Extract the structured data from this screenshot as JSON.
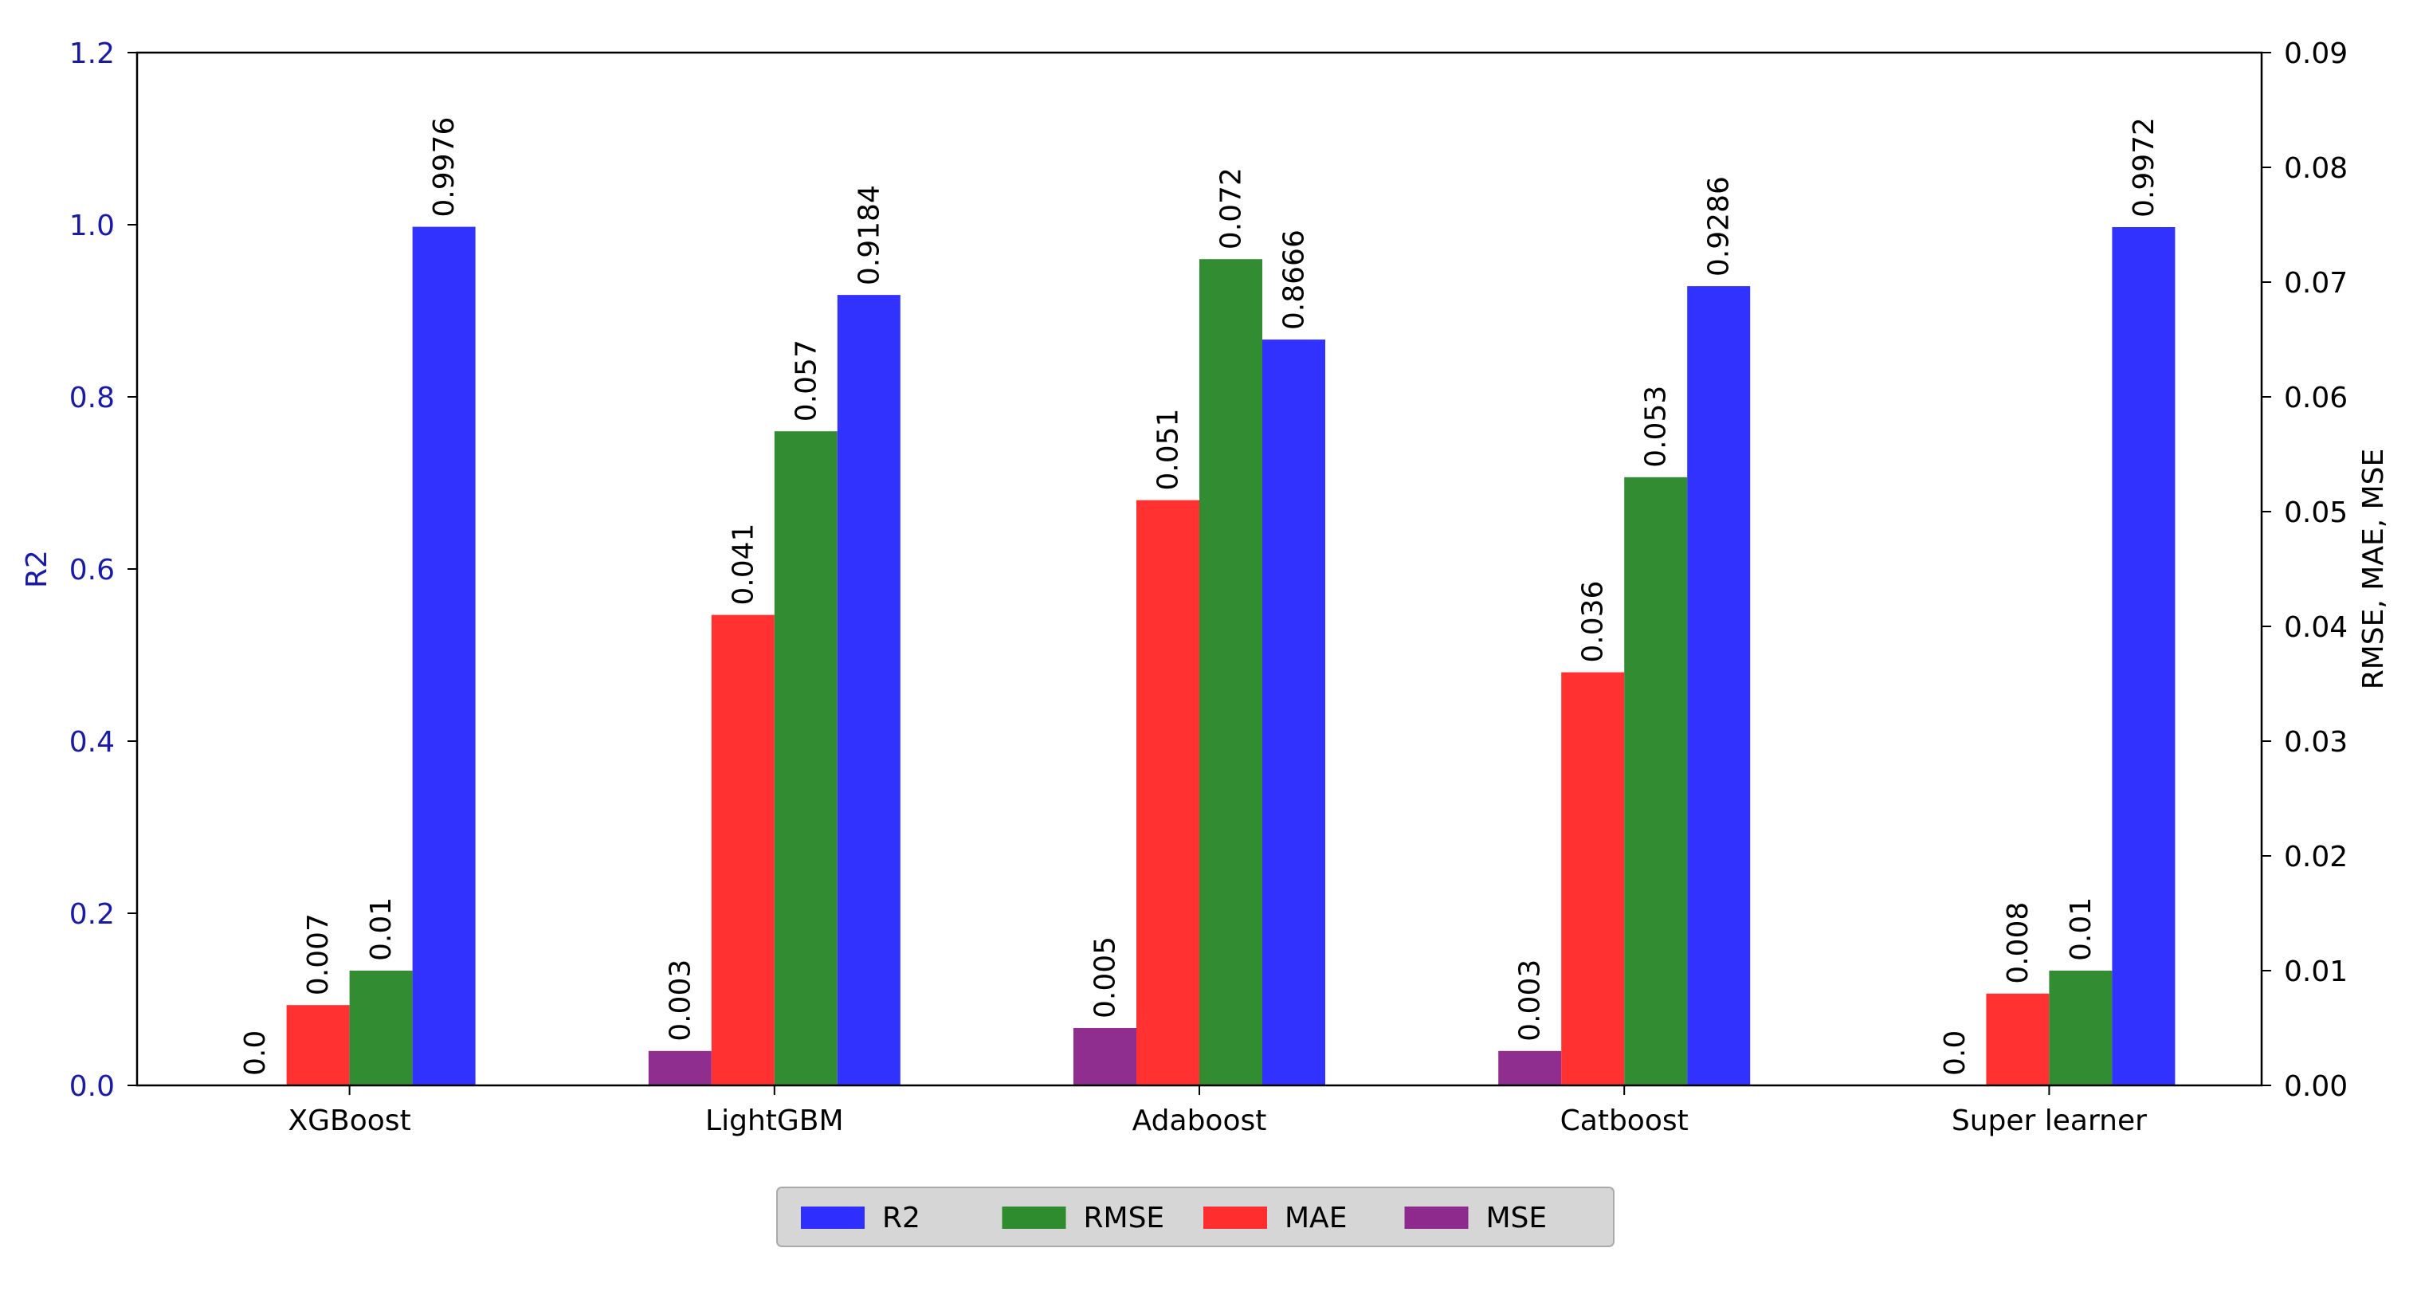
{
  "chart_data": {
    "type": "bar",
    "categories": [
      "XGBoost",
      "LightGBM",
      "Adaboost",
      "Catboost",
      "Super learner"
    ],
    "series": [
      {
        "name": "MSE",
        "axis": "right",
        "color": "#8e2a8e",
        "values": [
          0.0,
          0.003,
          0.005,
          0.003,
          0.0
        ],
        "labels": [
          "0.0",
          "0.003",
          "0.005",
          "0.003",
          "0.0"
        ]
      },
      {
        "name": "MAE",
        "axis": "right",
        "color": "#ff2d2d",
        "values": [
          0.007,
          0.041,
          0.051,
          0.036,
          0.008
        ],
        "labels": [
          "0.007",
          "0.041",
          "0.051",
          "0.036",
          "0.008"
        ]
      },
      {
        "name": "RMSE",
        "axis": "right",
        "color": "#2e8b2e",
        "values": [
          0.01,
          0.057,
          0.072,
          0.053,
          0.01
        ],
        "labels": [
          "0.01",
          "0.057",
          "0.072",
          "0.053",
          "0.01"
        ]
      },
      {
        "name": "R2",
        "axis": "left",
        "color": "#2e2eff",
        "values": [
          0.9976,
          0.9184,
          0.8666,
          0.9286,
          0.9972
        ],
        "labels": [
          "0.9976",
          "0.9184",
          "0.8666",
          "0.9286",
          "0.9972"
        ]
      }
    ],
    "left_axis": {
      "label": "R2",
      "color": "#1a1aaa",
      "ylim": [
        0,
        1.2
      ],
      "ticks": [
        "0.0",
        "0.2",
        "0.4",
        "0.6",
        "0.8",
        "1.0",
        "1.2"
      ]
    },
    "right_axis": {
      "label": "RMSE, MAE, MSE",
      "color": "#000000",
      "ylim": [
        0,
        0.09
      ],
      "ticks": [
        "0.00",
        "0.01",
        "0.02",
        "0.03",
        "0.04",
        "0.05",
        "0.06",
        "0.07",
        "0.08",
        "0.09"
      ]
    },
    "legend": {
      "placement": "bottom-center",
      "entries": [
        {
          "name": "R2",
          "color": "#2e2eff"
        },
        {
          "name": "RMSE",
          "color": "#2e8b2e"
        },
        {
          "name": "MAE",
          "color": "#ff2d2d"
        },
        {
          "name": "MSE",
          "color": "#8e2a8e"
        }
      ]
    },
    "grid": false
  }
}
